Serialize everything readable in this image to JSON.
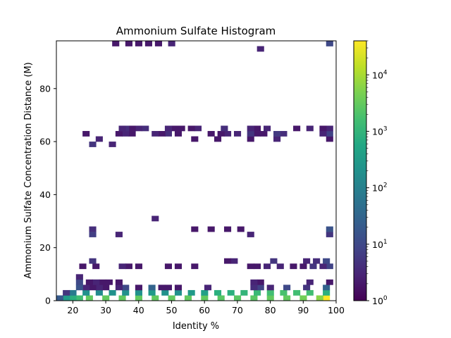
{
  "chart_data": {
    "type": "heatmap",
    "title": "Ammonium Sulfate Histogram",
    "xlabel": "Identity %",
    "ylabel": "Ammonium Sulfate Concentration Distance (M)",
    "xlim": [
      15,
      100
    ],
    "ylim": [
      0,
      98
    ],
    "bin_width_x": 2.1,
    "bin_height_y": 2.0,
    "x_ticks": [
      20,
      30,
      40,
      50,
      60,
      70,
      80,
      90,
      100
    ],
    "y_ticks": [
      0,
      20,
      40,
      60,
      80
    ],
    "grid": false,
    "colorbar": {
      "scale": "log",
      "min": 1,
      "max": 40000,
      "ticks": [
        {
          "value": 1,
          "base": "10",
          "exp": "0"
        },
        {
          "value": 10,
          "base": "10",
          "exp": "1"
        },
        {
          "value": 100,
          "base": "10",
          "exp": "2"
        },
        {
          "value": 1000,
          "base": "10",
          "exp": "3"
        },
        {
          "value": 10000,
          "base": "10",
          "exp": "4"
        }
      ],
      "colormap": "viridis"
    },
    "cells": [
      [
        97,
        2,
        40000
      ],
      [
        95,
        2,
        6000
      ],
      [
        90,
        2,
        4000
      ],
      [
        85,
        2,
        3000
      ],
      [
        80,
        2,
        3000
      ],
      [
        75,
        2,
        2500
      ],
      [
        70,
        2,
        2500
      ],
      [
        65,
        2,
        2500
      ],
      [
        60,
        2,
        3000
      ],
      [
        55,
        2,
        3000
      ],
      [
        50,
        2,
        3000
      ],
      [
        45,
        2,
        3000
      ],
      [
        40,
        2,
        3000
      ],
      [
        35,
        2,
        3000
      ],
      [
        30,
        2,
        3000
      ],
      [
        25,
        2,
        3000
      ],
      [
        22,
        2,
        1500
      ],
      [
        20,
        2,
        800
      ],
      [
        18,
        2,
        300
      ],
      [
        16,
        2,
        20
      ],
      [
        97,
        4,
        800
      ],
      [
        92,
        4,
        1500
      ],
      [
        88,
        4,
        1500
      ],
      [
        84,
        4,
        1800
      ],
      [
        80,
        4,
        1500
      ],
      [
        76,
        4,
        1200
      ],
      [
        72,
        4,
        1000
      ],
      [
        68,
        4,
        800
      ],
      [
        64,
        4,
        800
      ],
      [
        60,
        4,
        400
      ],
      [
        56,
        4,
        300
      ],
      [
        52,
        4,
        200
      ],
      [
        48,
        4,
        200
      ],
      [
        44,
        4,
        300
      ],
      [
        40,
        4,
        200
      ],
      [
        36,
        4,
        200
      ],
      [
        32,
        4,
        200
      ],
      [
        28,
        4,
        150
      ],
      [
        24,
        4,
        200
      ],
      [
        20,
        4,
        80
      ],
      [
        18,
        4,
        5
      ],
      [
        97,
        6,
        30
      ],
      [
        91,
        6,
        5
      ],
      [
        85,
        6,
        10
      ],
      [
        80,
        6,
        3
      ],
      [
        77,
        6,
        8
      ],
      [
        75,
        6,
        4
      ],
      [
        61,
        6,
        3
      ],
      [
        52,
        6,
        2
      ],
      [
        49,
        6,
        2
      ],
      [
        47,
        6,
        2
      ],
      [
        44,
        6,
        30
      ],
      [
        40,
        6,
        2
      ],
      [
        36,
        6,
        10
      ],
      [
        34,
        6,
        3
      ],
      [
        30,
        6,
        2
      ],
      [
        28,
        6,
        3
      ],
      [
        26,
        6,
        2
      ],
      [
        24,
        6,
        3
      ],
      [
        22,
        6,
        15
      ],
      [
        98,
        8,
        2
      ],
      [
        92,
        8,
        3
      ],
      [
        77,
        8,
        2
      ],
      [
        75,
        8,
        3
      ],
      [
        34,
        8,
        2
      ],
      [
        31,
        8,
        2
      ],
      [
        29,
        8,
        2
      ],
      [
        27,
        8,
        3
      ],
      [
        25,
        8,
        2
      ],
      [
        22,
        8,
        10
      ],
      [
        22,
        10,
        3
      ],
      [
        98,
        14,
        8
      ],
      [
        96,
        14,
        3
      ],
      [
        93,
        14,
        5
      ],
      [
        90,
        14,
        2
      ],
      [
        87,
        14,
        2
      ],
      [
        83,
        14,
        3
      ],
      [
        79,
        14,
        3
      ],
      [
        76,
        14,
        2
      ],
      [
        74,
        14,
        2
      ],
      [
        57,
        14,
        2
      ],
      [
        52,
        14,
        2
      ],
      [
        49,
        14,
        2
      ],
      [
        40,
        14,
        2
      ],
      [
        37,
        14,
        2
      ],
      [
        35,
        14,
        3
      ],
      [
        27,
        14,
        2
      ],
      [
        23,
        14,
        2
      ],
      [
        97,
        16,
        10
      ],
      [
        94,
        16,
        4
      ],
      [
        91,
        16,
        3
      ],
      [
        81,
        16,
        5
      ],
      [
        69,
        16,
        3
      ],
      [
        67,
        16,
        2
      ],
      [
        26,
        16,
        5
      ],
      [
        98,
        26,
        5
      ],
      [
        74,
        26,
        3
      ],
      [
        34,
        26,
        3
      ],
      [
        26,
        26,
        7
      ],
      [
        98,
        28,
        15
      ],
      [
        71,
        28,
        2
      ],
      [
        67,
        28,
        2
      ],
      [
        62,
        28,
        2
      ],
      [
        57,
        28,
        2
      ],
      [
        26,
        28,
        4
      ],
      [
        45,
        32,
        3
      ],
      [
        32,
        60,
        3
      ],
      [
        26,
        60,
        5
      ],
      [
        98,
        62,
        2
      ],
      [
        82,
        62,
        3
      ],
      [
        74,
        62,
        2
      ],
      [
        64,
        62,
        2
      ],
      [
        57,
        62,
        2
      ],
      [
        28,
        62,
        3
      ],
      [
        98,
        64,
        8
      ],
      [
        96,
        64,
        3
      ],
      [
        84,
        64,
        4
      ],
      [
        82,
        64,
        6
      ],
      [
        78,
        64,
        2
      ],
      [
        76,
        64,
        2
      ],
      [
        74,
        64,
        5
      ],
      [
        70,
        64,
        3
      ],
      [
        67,
        64,
        3
      ],
      [
        65,
        64,
        2
      ],
      [
        62,
        64,
        2
      ],
      [
        52,
        64,
        2
      ],
      [
        49,
        64,
        4
      ],
      [
        47,
        64,
        2
      ],
      [
        45,
        64,
        3
      ],
      [
        38,
        64,
        2
      ],
      [
        36,
        64,
        3
      ],
      [
        34,
        64,
        2
      ],
      [
        24,
        64,
        2
      ],
      [
        98,
        66,
        3
      ],
      [
        96,
        66,
        2
      ],
      [
        92,
        66,
        3
      ],
      [
        88,
        66,
        2
      ],
      [
        79,
        66,
        3
      ],
      [
        76,
        66,
        2
      ],
      [
        74,
        66,
        3
      ],
      [
        66,
        66,
        4
      ],
      [
        58,
        66,
        3
      ],
      [
        56,
        66,
        2
      ],
      [
        53,
        66,
        2
      ],
      [
        51,
        66,
        2
      ],
      [
        49,
        66,
        3
      ],
      [
        42,
        66,
        4
      ],
      [
        40,
        66,
        3
      ],
      [
        38,
        66,
        2
      ],
      [
        36,
        66,
        4
      ],
      [
        35,
        66,
        3
      ],
      [
        77,
        96,
        3
      ],
      [
        98,
        98,
        10
      ],
      [
        50,
        98,
        3
      ],
      [
        46,
        98,
        2
      ],
      [
        43,
        98,
        2
      ],
      [
        40,
        98,
        2
      ],
      [
        37,
        98,
        2
      ],
      [
        33,
        98,
        2
      ]
    ]
  }
}
